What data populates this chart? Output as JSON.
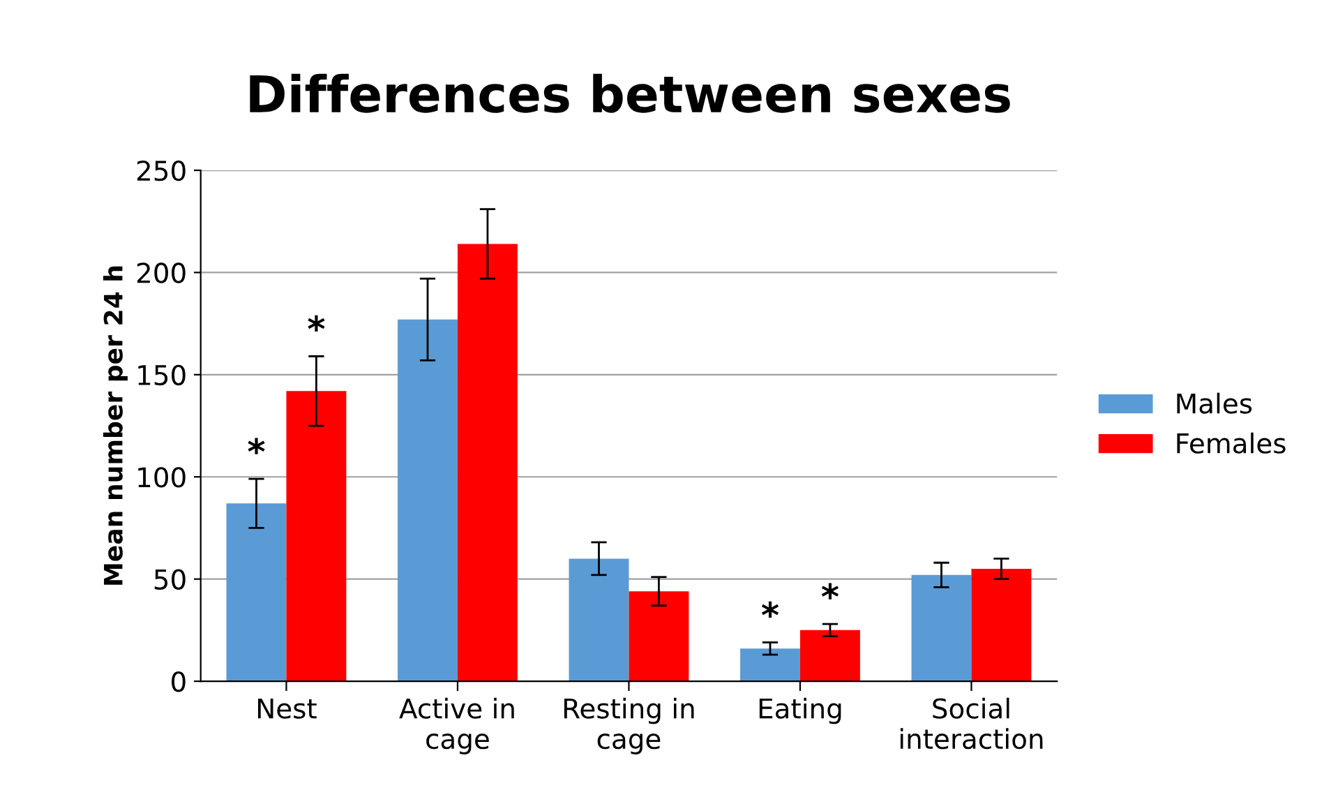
{
  "chart_data": {
    "type": "bar",
    "title": "Differences between sexes",
    "ylabel": "Mean number per 24 h",
    "categories": [
      "Nest",
      "Active in\ncage",
      "Resting in\ncage",
      "Eating",
      "Social\ninteraction"
    ],
    "series": [
      {
        "name": "Males",
        "color": "#5b9bd5",
        "values": [
          87,
          177,
          60,
          16,
          52
        ],
        "errors": [
          12,
          20,
          8,
          3,
          6
        ],
        "value_labels": [
          "*",
          null,
          null,
          "*",
          null
        ]
      },
      {
        "name": "Females",
        "color": "#ff0000",
        "values": [
          142,
          214,
          44,
          25,
          55
        ],
        "errors": [
          17,
          17,
          7,
          3,
          5
        ],
        "value_labels": [
          "*",
          null,
          null,
          "*",
          null
        ]
      }
    ],
    "ylim": [
      0,
      250
    ],
    "yticks": [
      0,
      50,
      100,
      150,
      200,
      250
    ],
    "grid": "y",
    "legend": "right"
  }
}
